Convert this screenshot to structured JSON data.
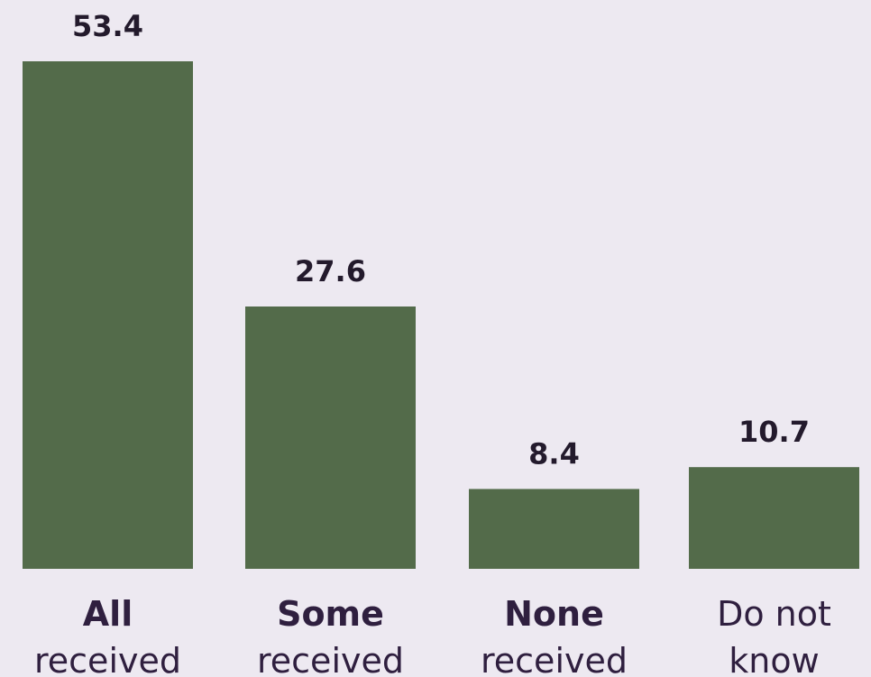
{
  "chart_data": {
    "type": "bar",
    "categories": [
      {
        "bold": "All",
        "rest": "received"
      },
      {
        "bold": "Some",
        "rest": "received"
      },
      {
        "bold": "None",
        "rest": "received"
      },
      {
        "bold": "",
        "lines": [
          "Do not",
          "know"
        ]
      }
    ],
    "values": [
      53.4,
      27.6,
      8.4,
      10.7
    ],
    "value_labels": [
      "53.4",
      "27.6",
      "8.4",
      "10.7"
    ],
    "title": "",
    "xlabel": "",
    "ylabel": "",
    "ylim": [
      0,
      53.4
    ],
    "grid": false,
    "legend": "none",
    "colors": {
      "bar": "#536b4a",
      "background": "#ede9f1",
      "text": "#2f1f3f"
    }
  }
}
